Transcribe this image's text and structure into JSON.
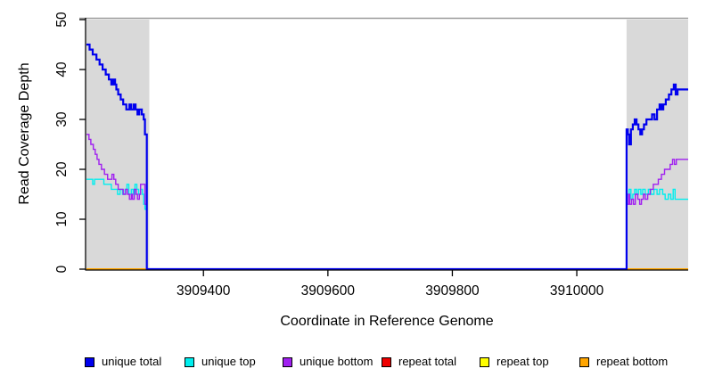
{
  "chart_data": {
    "type": "step-line",
    "title": "",
    "xlabel": "Coordinate in Reference Genome",
    "ylabel": "Read Coverage Depth",
    "xlim": [
      3909212,
      3910179
    ],
    "ylim": [
      0,
      50
    ],
    "xticks": [
      3909400,
      3909600,
      3909800,
      3910000
    ],
    "yticks": [
      0,
      10,
      20,
      30,
      40,
      50
    ],
    "grid": false,
    "top_rule_y": 50,
    "top_rule_color": "#9a9a9a",
    "shade_color": "#d9d9d9",
    "axis_color": "#000000",
    "shaded_regions": [
      {
        "x0": 3909212,
        "x1": 3909313
      },
      {
        "x0": 3910080,
        "x1": 3910179
      }
    ],
    "legend_position": "bottom",
    "legend": [
      {
        "label": "unique total",
        "color": "#0000EE"
      },
      {
        "label": "unique top",
        "color": "#00EEEE"
      },
      {
        "label": "unique bottom",
        "color": "#A020F0"
      },
      {
        "label": "repeat total",
        "color": "#EE0000"
      },
      {
        "label": "repeat top",
        "color": "#FFFF00"
      },
      {
        "label": "repeat bottom",
        "color": "#FFA500"
      }
    ],
    "series": [
      {
        "name": "repeat total",
        "color": "#EE0000",
        "width": 1.4,
        "segments": [
          [
            [
              3909212,
              0
            ],
            [
              3909313,
              0
            ]
          ],
          [
            [
              3910080,
              0
            ],
            [
              3910179,
              0
            ]
          ]
        ]
      },
      {
        "name": "repeat top",
        "color": "#FFFF00",
        "width": 1.4,
        "segments": [
          [
            [
              3909212,
              0
            ],
            [
              3909313,
              0
            ]
          ],
          [
            [
              3910080,
              0
            ],
            [
              3910179,
              0
            ]
          ]
        ]
      },
      {
        "name": "repeat bottom",
        "color": "#FFA500",
        "width": 2,
        "segments": [
          [
            [
              3909212,
              0
            ],
            [
              3909313,
              0
            ]
          ],
          [
            [
              3910080,
              0
            ],
            [
              3910179,
              0
            ]
          ]
        ]
      },
      {
        "name": "unique top",
        "color": "#00EEEE",
        "width": 1.4,
        "segments": [
          [
            [
              3909212,
              18
            ],
            [
              3909222,
              17
            ],
            [
              3909225,
              18
            ],
            [
              3909240,
              17
            ],
            [
              3909252,
              16
            ],
            [
              3909262,
              15
            ],
            [
              3909266,
              16
            ],
            [
              3909270,
              15
            ],
            [
              3909274,
              16
            ],
            [
              3909277,
              17
            ],
            [
              3909280,
              15
            ],
            [
              3909284,
              16
            ],
            [
              3909287,
              15
            ],
            [
              3909290,
              17
            ],
            [
              3909293,
              16
            ],
            [
              3909296,
              15
            ],
            [
              3909299,
              16
            ],
            [
              3909302,
              15
            ],
            [
              3909304,
              13
            ],
            [
              3909306,
              12
            ],
            [
              3909309,
              0
            ],
            [
              3910080,
              15
            ],
            [
              3910084,
              16
            ],
            [
              3910087,
              14
            ],
            [
              3910090,
              15
            ],
            [
              3910093,
              16
            ],
            [
              3910096,
              15
            ],
            [
              3910099,
              16
            ],
            [
              3910103,
              15
            ],
            [
              3910106,
              16
            ],
            [
              3910110,
              15
            ],
            [
              3910115,
              16
            ],
            [
              3910119,
              15
            ],
            [
              3910124,
              16
            ],
            [
              3910129,
              15
            ],
            [
              3910133,
              16
            ],
            [
              3910138,
              15
            ],
            [
              3910142,
              14
            ],
            [
              3910147,
              15
            ],
            [
              3910151,
              14
            ],
            [
              3910155,
              16
            ],
            [
              3910158,
              14
            ],
            [
              3910179,
              14
            ]
          ]
        ]
      },
      {
        "name": "unique bottom",
        "color": "#A020F0",
        "width": 1.4,
        "segments": [
          [
            [
              3909212,
              27
            ],
            [
              3909216,
              26
            ],
            [
              3909219,
              25
            ],
            [
              3909223,
              24
            ],
            [
              3909226,
              23
            ],
            [
              3909229,
              22
            ],
            [
              3909232,
              21
            ],
            [
              3909236,
              20
            ],
            [
              3909241,
              19
            ],
            [
              3909246,
              18
            ],
            [
              3909253,
              19
            ],
            [
              3909256,
              18
            ],
            [
              3909259,
              17
            ],
            [
              3909263,
              16
            ],
            [
              3909271,
              15
            ],
            [
              3909275,
              16
            ],
            [
              3909278,
              15
            ],
            [
              3909281,
              14
            ],
            [
              3909284,
              15
            ],
            [
              3909286,
              14
            ],
            [
              3909289,
              16
            ],
            [
              3909292,
              15
            ],
            [
              3909294,
              14
            ],
            [
              3909297,
              15
            ],
            [
              3909299,
              17
            ],
            [
              3909305,
              17
            ],
            [
              3909306,
              13
            ],
            [
              3909309,
              0
            ],
            [
              3910080,
              13
            ],
            [
              3910083,
              15
            ],
            [
              3910085,
              13
            ],
            [
              3910088,
              14
            ],
            [
              3910091,
              13
            ],
            [
              3910094,
              15
            ],
            [
              3910098,
              14
            ],
            [
              3910101,
              13
            ],
            [
              3910104,
              14
            ],
            [
              3910107,
              15
            ],
            [
              3910110,
              14
            ],
            [
              3910114,
              15
            ],
            [
              3910118,
              16
            ],
            [
              3910123,
              17
            ],
            [
              3910131,
              18
            ],
            [
              3910136,
              19
            ],
            [
              3910141,
              20
            ],
            [
              3910150,
              21
            ],
            [
              3910154,
              22
            ],
            [
              3910157,
              21
            ],
            [
              3910160,
              22
            ],
            [
              3910179,
              22
            ]
          ]
        ]
      },
      {
        "name": "unique total",
        "color": "#0000EE",
        "width": 2.2,
        "segments": [
          [
            [
              3909212,
              45
            ],
            [
              3909217,
              44
            ],
            [
              3909222,
              43
            ],
            [
              3909228,
              42
            ],
            [
              3909233,
              41
            ],
            [
              3909238,
              40
            ],
            [
              3909243,
              39
            ],
            [
              3909248,
              38
            ],
            [
              3909252,
              37
            ],
            [
              3909255,
              38
            ],
            [
              3909258,
              37
            ],
            [
              3909260,
              36
            ],
            [
              3909263,
              35
            ],
            [
              3909267,
              34
            ],
            [
              3909271,
              33
            ],
            [
              3909276,
              32
            ],
            [
              3909281,
              33
            ],
            [
              3909284,
              32
            ],
            [
              3909288,
              33
            ],
            [
              3909291,
              32
            ],
            [
              3909294,
              31
            ],
            [
              3909297,
              32
            ],
            [
              3909301,
              31
            ],
            [
              3909304,
              30
            ],
            [
              3909306,
              27
            ],
            [
              3909309,
              0
            ],
            [
              3910080,
              28
            ],
            [
              3910082,
              27
            ],
            [
              3910084,
              25
            ],
            [
              3910087,
              28
            ],
            [
              3910090,
              29
            ],
            [
              3910093,
              30
            ],
            [
              3910096,
              29
            ],
            [
              3910099,
              28
            ],
            [
              3910102,
              27
            ],
            [
              3910105,
              28
            ],
            [
              3910108,
              29
            ],
            [
              3910112,
              30
            ],
            [
              3910121,
              31
            ],
            [
              3910125,
              30
            ],
            [
              3910129,
              32
            ],
            [
              3910133,
              33
            ],
            [
              3910136,
              32
            ],
            [
              3910139,
              33
            ],
            [
              3910143,
              34
            ],
            [
              3910148,
              35
            ],
            [
              3910152,
              36
            ],
            [
              3910156,
              37
            ],
            [
              3910159,
              35
            ],
            [
              3910162,
              36
            ],
            [
              3910179,
              36
            ]
          ]
        ]
      }
    ]
  }
}
